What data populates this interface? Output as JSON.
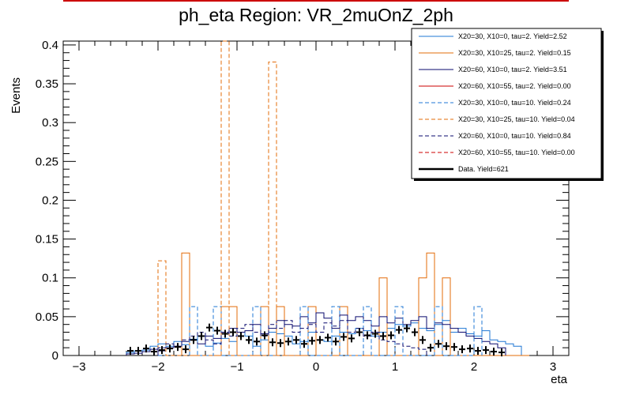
{
  "chart_data": {
    "type": "line",
    "title": "ph_eta Region: VR_2muOnZ_2ph",
    "xlabel": "eta",
    "ylabel": "Events",
    "xlim": [
      -3.2,
      3.2
    ],
    "ylim": [
      0,
      0.405
    ],
    "x_ticks": [
      -3,
      -2,
      -1,
      0,
      1,
      2,
      3
    ],
    "x_tick_labels": [
      "−3",
      "−2",
      "−1",
      "0",
      "1",
      "2",
      "3"
    ],
    "y_ticks": [
      0,
      0.05,
      0.1,
      0.15,
      0.2,
      0.25,
      0.3,
      0.35,
      0.4
    ],
    "y_tick_labels": [
      "0",
      "0.05",
      "0.1",
      "0.15",
      "0.2",
      "0.25",
      "0.3",
      "0.35",
      "0.4"
    ],
    "bin_width": 0.1,
    "legend_position": "top-right",
    "legend": [
      {
        "label": "X20=30, X10=0, tau=2. Yield=2.52",
        "color": "#1f77d4",
        "style": "solid"
      },
      {
        "label": "X20=30, X10=25, tau=2. Yield=0.15",
        "color": "#e36c0a",
        "style": "solid"
      },
      {
        "label": "X20=60, X10=0, tau=2. Yield=3.51",
        "color": "#0a0a6e",
        "style": "solid"
      },
      {
        "label": "X20=60, X10=55, tau=2. Yield=0.00",
        "color": "#cc0000",
        "style": "solid"
      },
      {
        "label": "X20=30, X10=0, tau=10. Yield=0.24",
        "color": "#1f77d4",
        "style": "dashed"
      },
      {
        "label": "X20=30, X10=25, tau=10. Yield=0.04",
        "color": "#e36c0a",
        "style": "dashed"
      },
      {
        "label": "X20=60, X10=0, tau=10. Yield=0.84",
        "color": "#0a0a6e",
        "style": "dashed"
      },
      {
        "label": "X20=60, X10=55, tau=10. Yield=0.00",
        "color": "#cc0000",
        "style": "dashed"
      },
      {
        "label": "Data. Yield=621",
        "color": "#000000",
        "style": "thick"
      }
    ],
    "series": [
      {
        "name": "X20=30, X10=0, tau=2. Yield=2.52",
        "color": "#1f77d4",
        "style": "solid",
        "x_start": -2.4,
        "values": [
          0.004,
          0.006,
          0.007,
          0.012,
          0.015,
          0.012,
          0.018,
          0.014,
          0.021,
          0.025,
          0.012,
          0.016,
          0.022,
          0.018,
          0.03,
          0.025,
          0.012,
          0.02,
          0.03,
          0.028,
          0.025,
          0.015,
          0.018,
          0.03,
          0.02,
          0.018,
          0.025,
          0.03,
          0.028,
          0.035,
          0.032,
          0.025,
          0.03,
          0.035,
          0.04,
          0.038,
          0.042,
          0.035,
          0.032,
          0.04,
          0.045,
          0.03,
          0.035,
          0.028,
          0.025,
          0.032,
          0.02,
          0.018,
          0.015,
          0.012
        ]
      },
      {
        "name": "X20=30, X10=25, tau=2. Yield=0.15",
        "color": "#e36c0a",
        "style": "solid",
        "x_start": -1.7,
        "values": [
          0.132,
          0,
          0,
          0,
          0,
          0.063,
          0.063,
          0,
          0,
          0,
          0.063,
          0,
          0.063,
          0,
          0,
          0,
          0.063,
          0,
          0,
          0,
          0.063,
          0,
          0,
          0,
          0,
          0.1,
          0,
          0,
          0,
          0,
          0.1,
          0.132,
          0,
          0.1,
          0,
          0,
          0,
          0,
          0,
          0,
          0,
          0,
          0,
          0
        ]
      },
      {
        "name": "X20=60, X10=0, tau=2. Yield=3.51",
        "color": "#0a0a6e",
        "style": "solid",
        "x_start": -2.4,
        "values": [
          0.002,
          0.003,
          0.005,
          0.008,
          0.006,
          0.01,
          0.012,
          0.018,
          0.02,
          0.015,
          0.025,
          0.022,
          0.028,
          0.035,
          0.03,
          0.032,
          0.04,
          0.028,
          0.035,
          0.045,
          0.04,
          0.038,
          0.05,
          0.042,
          0.055,
          0.048,
          0.035,
          0.052,
          0.045,
          0.05,
          0.045,
          0.038,
          0.05,
          0.042,
          0.048,
          0.04,
          0.045,
          0.05,
          0.035,
          0.042,
          0.04,
          0.035,
          0.03,
          0.025,
          0.022,
          0.018,
          0.015,
          0.01
        ]
      },
      {
        "name": "X20=30, X10=0, tau=10. Yield=0.24",
        "color": "#1f77d4",
        "style": "dashed",
        "x_start": -2.0,
        "values": [
          0,
          0,
          0,
          0,
          0.063,
          0,
          0,
          0.063,
          0,
          0,
          0,
          0,
          0.063,
          0,
          0,
          0,
          0,
          0,
          0.063,
          0,
          0,
          0,
          0.063,
          0,
          0,
          0,
          0.063,
          0,
          0,
          0,
          0.063,
          0,
          0,
          0,
          0,
          0.063,
          0,
          0,
          0,
          0,
          0.063
        ]
      },
      {
        "name": "X20=30, X10=25, tau=10. Yield=0.04",
        "color": "#e36c0a",
        "style": "dashed",
        "x_start": -2.0,
        "values": [
          0.122,
          0,
          0,
          0,
          0,
          0,
          0,
          0,
          0.405,
          0,
          0,
          0,
          0,
          0,
          0.378,
          0,
          0,
          0
        ]
      },
      {
        "name": "X20=60, X10=0, tau=10. Yield=0.84",
        "color": "#0a0a6e",
        "style": "dashed",
        "x_start": -2.0,
        "values": [
          0.01,
          0.015,
          0.012,
          0.02,
          0.025,
          0.03,
          0.02,
          0.015,
          0.03,
          0.025,
          0.035,
          0.04,
          0.03,
          0.025,
          0.04,
          0.035,
          0.045,
          0.03,
          0.035,
          0.04,
          0.03,
          0.042,
          0.038,
          0.045,
          0.03,
          0.035,
          0.025,
          0.03,
          0.02,
          0.018,
          0.015,
          0.012,
          0.01,
          0.008
        ]
      }
    ],
    "data_points": {
      "name": "Data. Yield=621",
      "color": "#000000",
      "x": [
        -2.35,
        -2.25,
        -2.15,
        -2.05,
        -1.95,
        -1.85,
        -1.75,
        -1.65,
        -1.55,
        -1.45,
        -1.35,
        -1.25,
        -1.15,
        -1.05,
        -0.95,
        -0.85,
        -0.75,
        -0.65,
        -0.55,
        -0.45,
        -0.35,
        -0.25,
        -0.15,
        -0.05,
        0.05,
        0.15,
        0.25,
        0.35,
        0.45,
        0.55,
        0.65,
        0.75,
        0.85,
        0.95,
        1.05,
        1.15,
        1.25,
        1.35,
        1.45,
        1.55,
        1.65,
        1.75,
        1.85,
        1.95,
        2.05,
        2.15,
        2.25,
        2.35
      ],
      "y": [
        0.006,
        0.006,
        0.009,
        0.005,
        0.007,
        0.009,
        0.011,
        0.008,
        0.02,
        0.025,
        0.036,
        0.032,
        0.028,
        0.03,
        0.025,
        0.02,
        0.018,
        0.026,
        0.017,
        0.016,
        0.018,
        0.02,
        0.015,
        0.019,
        0.02,
        0.023,
        0.018,
        0.024,
        0.022,
        0.03,
        0.026,
        0.028,
        0.025,
        0.026,
        0.033,
        0.035,
        0.03,
        0.02,
        0.01,
        0.015,
        0.012,
        0.011,
        0.008,
        0.009,
        0.006,
        0.007,
        0.005,
        0.004
      ]
    }
  }
}
